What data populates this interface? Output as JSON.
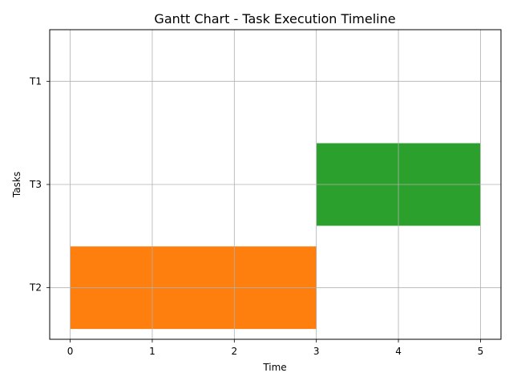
{
  "chart_data": {
    "type": "gantt",
    "title": "Gantt Chart - Task Execution Timeline",
    "xlabel": "Time",
    "ylabel": "Tasks",
    "xlim": [
      -0.25,
      5.25
    ],
    "x_ticks": [
      0,
      1,
      2,
      3,
      4,
      5
    ],
    "categories": [
      "T2",
      "T3",
      "T1"
    ],
    "grid": true,
    "tasks": [
      {
        "task": "T2",
        "start": 0,
        "end": 3,
        "color": "#ff7f0e"
      },
      {
        "task": "T3",
        "start": 3,
        "end": 5,
        "color": "#2ca02c"
      }
    ]
  }
}
